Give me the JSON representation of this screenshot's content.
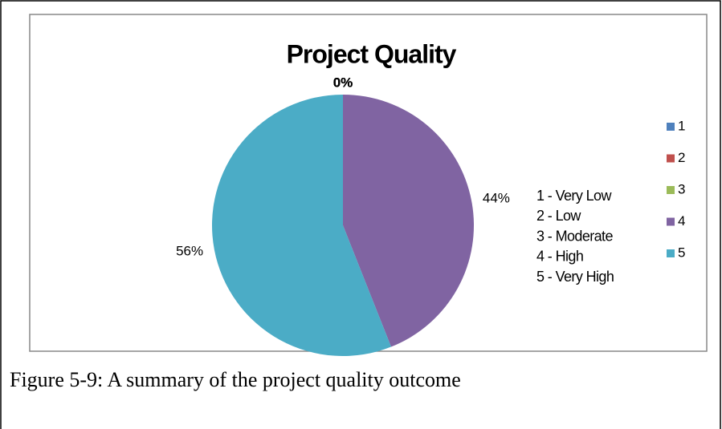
{
  "chart_data": {
    "type": "pie",
    "title": "Project Quality",
    "categories": [
      "1",
      "2",
      "3",
      "4",
      "5"
    ],
    "values": [
      0,
      0,
      0,
      44,
      56
    ],
    "value_labels": [
      "0%",
      "0%",
      "0%",
      "44%",
      "56%"
    ],
    "colors": [
      "#4f81bd",
      "#c0504d",
      "#9bbb59",
      "#8064a2",
      "#4bacc6"
    ],
    "legend": "right",
    "annotations": [
      "1 - Very Low",
      "2 - Low",
      "3 - Moderate",
      "4 - High",
      "5 - Very High"
    ]
  },
  "caption": "Figure 5-9: A summary of the project quality outcome"
}
